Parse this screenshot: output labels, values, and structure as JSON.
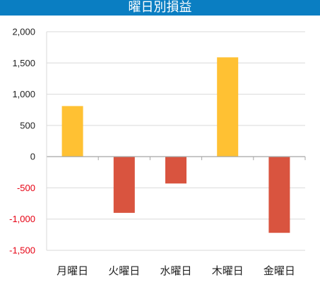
{
  "title": "曜日別損益",
  "colors": {
    "title_bar": "#0a7ec2",
    "positive": "#ffc133",
    "negative": "#d9543f",
    "negative_label": "#e60012",
    "positive_label": "#222222",
    "grid": "#d9d9d9",
    "axis": "#a6a6a6"
  },
  "chart_data": {
    "type": "bar",
    "title": "曜日別損益",
    "categories": [
      "月曜日",
      "火曜日",
      "水曜日",
      "木曜日",
      "金曜日"
    ],
    "values": [
      810,
      -900,
      -430,
      1590,
      -1220
    ],
    "ylim": [
      -1500,
      2000
    ],
    "yticks": [
      2000,
      1500,
      1000,
      500,
      0,
      -500,
      -1000,
      -1500
    ],
    "ytick_labels": [
      "2,000",
      "1,500",
      "1,000",
      "500",
      "0",
      "-500",
      "-1,000",
      "-1,500"
    ],
    "grid": true,
    "legend": false
  }
}
